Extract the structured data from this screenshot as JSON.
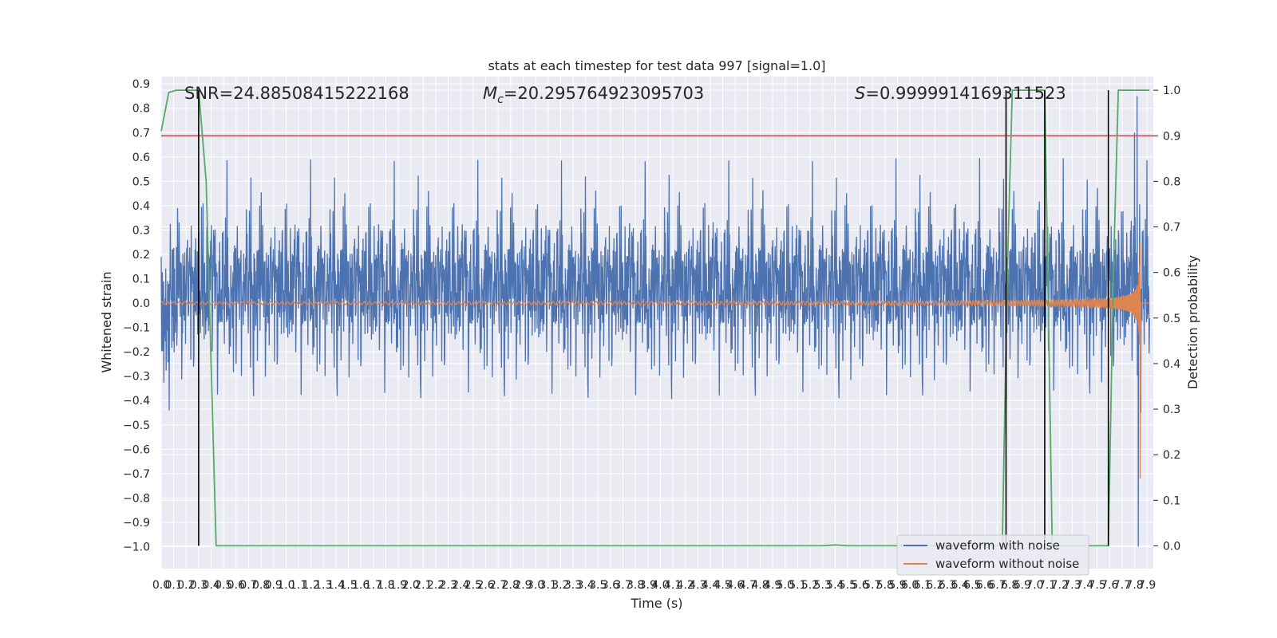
{
  "chart_data": {
    "type": "line",
    "title": "stats at each timestep for test data 997 [signal=1.0]",
    "xlabel": "Time (s)",
    "ylabel": "Whitened strain",
    "ylabel_right": "Detection probability",
    "xlim": [
      0.0,
      7.95
    ],
    "ylim": [
      -1.09,
      0.93
    ],
    "ylim_right": [
      -0.05,
      1.03
    ],
    "x_ticks": [
      0.0,
      0.1,
      0.2,
      0.3,
      0.4,
      0.5,
      0.6,
      0.7,
      0.8,
      0.9,
      1.0,
      1.1,
      1.2,
      1.3,
      1.4,
      1.5,
      1.6,
      1.7,
      1.8,
      1.9,
      2.0,
      2.1,
      2.2,
      2.3,
      2.4,
      2.5,
      2.6,
      2.7,
      2.8,
      2.9,
      3.0,
      3.1,
      3.2,
      3.3,
      3.4,
      3.5,
      3.6,
      3.7,
      3.8,
      3.9,
      4.0,
      4.1,
      4.2,
      4.3,
      4.4,
      4.5,
      4.6,
      4.7,
      4.8,
      4.9,
      5.0,
      5.1,
      5.2,
      5.3,
      5.4,
      5.5,
      5.6,
      5.7,
      5.8,
      5.9,
      6.0,
      6.1,
      6.2,
      6.3,
      6.4,
      6.5,
      6.6,
      6.7,
      6.8,
      6.9,
      7.0,
      7.1,
      7.2,
      7.3,
      7.4,
      7.5,
      7.6,
      7.7,
      7.8,
      7.9
    ],
    "y_ticks": [
      0.9,
      0.8,
      0.7,
      0.6,
      0.5,
      0.4,
      0.3,
      0.2,
      0.1,
      0.0,
      -0.1,
      -0.2,
      -0.3,
      -0.4,
      -0.5,
      -0.6,
      -0.7,
      -0.8,
      -0.9,
      -1.0
    ],
    "y_ticks_right": [
      1.0,
      0.9,
      0.8,
      0.7,
      0.6,
      0.5,
      0.4,
      0.3,
      0.2,
      0.1,
      0.0
    ],
    "grid": true,
    "legend_position": "bottom-right",
    "annotations": [
      {
        "id": "snr",
        "label": "SNR=24.88508415222168"
      },
      {
        "id": "mc",
        "label_prefix": "M",
        "label_sub": "c",
        "label_value": "=20.295764923095703"
      },
      {
        "id": "s",
        "label_prefix": "S",
        "label_value": "=0.9999914169311523"
      }
    ],
    "threshold_right": 0.9,
    "event_times": [
      0.3,
      6.77,
      7.08,
      7.59
    ],
    "series": [
      {
        "name": "waveform with noise",
        "color": "#4c72b0",
        "axis": "left",
        "kind": "noise",
        "std": 0.17,
        "spikes": [
          [
            7.82,
            0.85
          ],
          [
            7.83,
            -1.0
          ],
          [
            7.8,
            0.7
          ]
        ]
      },
      {
        "name": "waveform without noise",
        "color": "#dd8452",
        "axis": "left",
        "kind": "chirp",
        "merger_time": 7.85,
        "peak_amplitude": 0.8,
        "min_peak": -0.72
      },
      {
        "name": "",
        "color": "#55a868",
        "axis": "right",
        "kind": "probability",
        "points": [
          [
            0.0,
            0.91
          ],
          [
            0.06,
            0.995
          ],
          [
            0.12,
            1.0
          ],
          [
            0.3,
            1.0
          ],
          [
            0.36,
            0.8
          ],
          [
            0.4,
            0.4
          ],
          [
            0.44,
            0.0
          ],
          [
            5.3,
            0.0
          ],
          [
            5.4,
            0.002
          ],
          [
            5.5,
            0.0
          ],
          [
            6.74,
            0.0
          ],
          [
            6.78,
            0.6
          ],
          [
            6.82,
            1.0
          ],
          [
            7.08,
            1.0
          ],
          [
            7.14,
            0.0
          ],
          [
            7.59,
            0.0
          ],
          [
            7.63,
            0.6
          ],
          [
            7.67,
            1.0
          ],
          [
            7.92,
            1.0
          ]
        ]
      },
      {
        "name": "",
        "color": "#c44e52",
        "axis": "right",
        "kind": "hline",
        "value": 0.9
      }
    ]
  }
}
